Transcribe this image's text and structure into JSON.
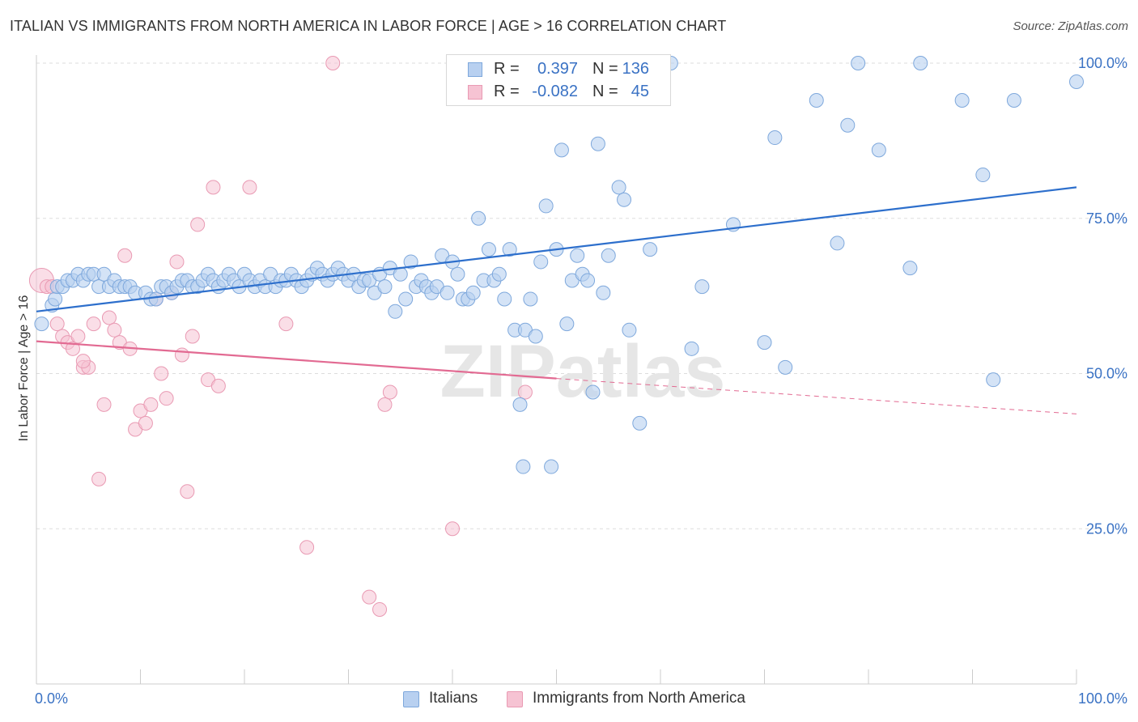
{
  "title": "ITALIAN VS IMMIGRANTS FROM NORTH AMERICA IN LABOR FORCE | AGE > 16 CORRELATION CHART",
  "source": "Source: ZipAtlas.com",
  "watermark": "ZIPatlas",
  "colors": {
    "italians_fill": "#b8d0f0",
    "italians_stroke": "#7ea8dc",
    "italians_line": "#2d6fcc",
    "immigrants_fill": "#f6c3d3",
    "immigrants_stroke": "#e99ab3",
    "immigrants_line": "#e26a92",
    "tick_text": "#3a72c4",
    "grid": "#dddddd"
  },
  "legend_top": {
    "rows": [
      {
        "r_label": "R =",
        "r_value": "0.397",
        "n_label": "N =",
        "n_value": "136"
      },
      {
        "r_label": "R =",
        "r_value": "-0.082",
        "n_label": "N =",
        "n_value": "45"
      }
    ]
  },
  "legend_bottom": [
    "Italians",
    "Immigrants from North America"
  ],
  "chart_data": {
    "type": "scatter",
    "title": "ITALIAN VS IMMIGRANTS FROM NORTH AMERICA IN LABOR FORCE | AGE > 16 CORRELATION CHART",
    "xlabel": "",
    "ylabel": "In Labor Force | Age > 16",
    "xlim": [
      0,
      100
    ],
    "ylim": [
      0,
      100
    ],
    "x_tick_labels": [
      "0.0%",
      "100.0%"
    ],
    "y_ticks": [
      25,
      50,
      75,
      100
    ],
    "y_tick_labels": [
      "25.0%",
      "50.0%",
      "75.0%",
      "100.0%"
    ],
    "grid": "horizontal dashed",
    "legend_position": "bottom",
    "series": [
      {
        "name": "Italians",
        "r": 0.397,
        "n": 136,
        "trend": {
          "x": [
            0,
            100
          ],
          "y": [
            60.0,
            80.0
          ],
          "style": "solid"
        },
        "points": [
          [
            0.5,
            58
          ],
          [
            1.5,
            61
          ],
          [
            1.8,
            62
          ],
          [
            2.0,
            64
          ],
          [
            2.5,
            64
          ],
          [
            3.0,
            65
          ],
          [
            3.5,
            65
          ],
          [
            4.0,
            66
          ],
          [
            4.5,
            65
          ],
          [
            5.0,
            66
          ],
          [
            5.5,
            66
          ],
          [
            6.0,
            64
          ],
          [
            6.5,
            66
          ],
          [
            7.0,
            64
          ],
          [
            7.5,
            65
          ],
          [
            8.0,
            64
          ],
          [
            8.5,
            64
          ],
          [
            9.0,
            64
          ],
          [
            9.5,
            63
          ],
          [
            10.5,
            63
          ],
          [
            11.0,
            62
          ],
          [
            11.5,
            62
          ],
          [
            12.0,
            64
          ],
          [
            12.5,
            64
          ],
          [
            13.0,
            63
          ],
          [
            13.5,
            64
          ],
          [
            14.0,
            65
          ],
          [
            14.5,
            65
          ],
          [
            15.0,
            64
          ],
          [
            15.5,
            64
          ],
          [
            16.0,
            65
          ],
          [
            16.5,
            66
          ],
          [
            17.0,
            65
          ],
          [
            17.5,
            64
          ],
          [
            18.0,
            65
          ],
          [
            18.5,
            66
          ],
          [
            19.0,
            65
          ],
          [
            19.5,
            64
          ],
          [
            20.0,
            66
          ],
          [
            20.5,
            65
          ],
          [
            21.0,
            64
          ],
          [
            21.5,
            65
          ],
          [
            22.0,
            64
          ],
          [
            22.5,
            66
          ],
          [
            23.0,
            64
          ],
          [
            23.5,
            65
          ],
          [
            24.0,
            65
          ],
          [
            24.5,
            66
          ],
          [
            25.0,
            65
          ],
          [
            25.5,
            64
          ],
          [
            26.0,
            65
          ],
          [
            26.5,
            66
          ],
          [
            27.0,
            67
          ],
          [
            27.5,
            66
          ],
          [
            28.0,
            65
          ],
          [
            28.5,
            66
          ],
          [
            29.0,
            67
          ],
          [
            29.5,
            66
          ],
          [
            30.0,
            65
          ],
          [
            30.5,
            66
          ],
          [
            31.0,
            64
          ],
          [
            31.5,
            65
          ],
          [
            32.0,
            65
          ],
          [
            32.5,
            63
          ],
          [
            33.0,
            66
          ],
          [
            33.5,
            64
          ],
          [
            34.0,
            67
          ],
          [
            34.5,
            60
          ],
          [
            35.0,
            66
          ],
          [
            35.5,
            62
          ],
          [
            36.0,
            68
          ],
          [
            36.5,
            64
          ],
          [
            37.0,
            65
          ],
          [
            37.5,
            64
          ],
          [
            38.0,
            63
          ],
          [
            38.5,
            64
          ],
          [
            39.0,
            69
          ],
          [
            39.5,
            63
          ],
          [
            40.0,
            68
          ],
          [
            40.5,
            66
          ],
          [
            41.0,
            62
          ],
          [
            41.5,
            62
          ],
          [
            42.0,
            63
          ],
          [
            42.5,
            75
          ],
          [
            43.0,
            65
          ],
          [
            43.5,
            70
          ],
          [
            44.0,
            65
          ],
          [
            44.5,
            66
          ],
          [
            45.0,
            62
          ],
          [
            45.5,
            70
          ],
          [
            46.0,
            57
          ],
          [
            46.5,
            45
          ],
          [
            46.8,
            35
          ],
          [
            47.0,
            57
          ],
          [
            47.5,
            62
          ],
          [
            48.0,
            56
          ],
          [
            48.5,
            68
          ],
          [
            49.0,
            77
          ],
          [
            49.5,
            35
          ],
          [
            50.0,
            70
          ],
          [
            50.5,
            86
          ],
          [
            51.0,
            58
          ],
          [
            51.5,
            65
          ],
          [
            52.0,
            69
          ],
          [
            52.5,
            66
          ],
          [
            53.0,
            65
          ],
          [
            53.5,
            47
          ],
          [
            54.0,
            87
          ],
          [
            54.5,
            63
          ],
          [
            55.0,
            69
          ],
          [
            56.0,
            80
          ],
          [
            56.5,
            78
          ],
          [
            57.0,
            57
          ],
          [
            58.0,
            42
          ],
          [
            59.0,
            70
          ],
          [
            63.0,
            54
          ],
          [
            64.0,
            64
          ],
          [
            67.0,
            74
          ],
          [
            70.0,
            55
          ],
          [
            71.0,
            88
          ],
          [
            72.0,
            51
          ],
          [
            75.0,
            94
          ],
          [
            77.0,
            71
          ],
          [
            78.0,
            90
          ],
          [
            81.0,
            86
          ],
          [
            84.0,
            67
          ],
          [
            89.0,
            94
          ],
          [
            91.0,
            82
          ],
          [
            92.0,
            49
          ],
          [
            94.0,
            94
          ],
          [
            100.0,
            97
          ],
          [
            48.0,
            100
          ],
          [
            58.0,
            100
          ],
          [
            61.0,
            100
          ],
          [
            79.0,
            100
          ],
          [
            85.0,
            100
          ]
        ]
      },
      {
        "name": "Immigrants from North America",
        "r": -0.082,
        "n": 45,
        "trend": {
          "x": [
            0,
            50,
            100
          ],
          "y": [
            55.2,
            49.2,
            43.5
          ],
          "style": "solid to 50, dashed after"
        },
        "points": [
          [
            0.5,
            65
          ],
          [
            1.0,
            64
          ],
          [
            1.5,
            64
          ],
          [
            2.0,
            58
          ],
          [
            2.5,
            56
          ],
          [
            3.0,
            55
          ],
          [
            3.5,
            54
          ],
          [
            4.0,
            56
          ],
          [
            4.5,
            51
          ],
          [
            5.0,
            51
          ],
          [
            5.5,
            58
          ],
          [
            6.0,
            33
          ],
          [
            6.5,
            45
          ],
          [
            7.0,
            59
          ],
          [
            7.5,
            57
          ],
          [
            8.0,
            55
          ],
          [
            8.5,
            69
          ],
          [
            9.0,
            54
          ],
          [
            9.5,
            41
          ],
          [
            10.0,
            44
          ],
          [
            10.5,
            42
          ],
          [
            11.0,
            45
          ],
          [
            11.5,
            62
          ],
          [
            12.0,
            50
          ],
          [
            12.5,
            46
          ],
          [
            13.0,
            63
          ],
          [
            13.5,
            68
          ],
          [
            14.0,
            53
          ],
          [
            14.5,
            31
          ],
          [
            15.0,
            56
          ],
          [
            15.5,
            74
          ],
          [
            16.5,
            49
          ],
          [
            17.0,
            80
          ],
          [
            17.5,
            48
          ],
          [
            20.5,
            80
          ],
          [
            24.0,
            58
          ],
          [
            26.0,
            22
          ],
          [
            28.5,
            100
          ],
          [
            32.0,
            14
          ],
          [
            33.0,
            12
          ],
          [
            33.5,
            45
          ],
          [
            34.0,
            47
          ],
          [
            40.0,
            25
          ],
          [
            47.0,
            47
          ],
          [
            4.5,
            52
          ]
        ]
      }
    ]
  }
}
